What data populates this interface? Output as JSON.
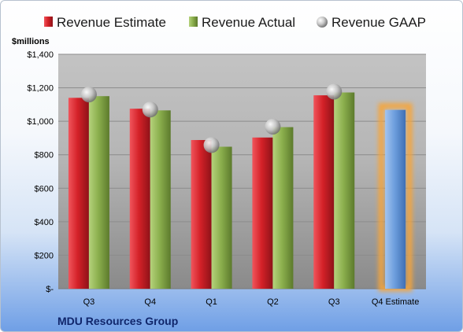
{
  "chart_data": {
    "type": "bar",
    "categories": [
      "Q3",
      "Q4",
      "Q1",
      "Q2",
      "Q3",
      "Q4 Estimate"
    ],
    "series": [
      {
        "name": "Revenue Estimate",
        "values": [
          1140,
          1075,
          888,
          903,
          1155,
          null
        ],
        "color": "#d42128"
      },
      {
        "name": "Revenue Actual",
        "values": [
          1150,
          1065,
          848,
          965,
          1172,
          null
        ],
        "color": "#8cb04e"
      },
      {
        "name": "Revenue GAAP",
        "values": [
          1160,
          1070,
          858,
          968,
          1177,
          null
        ],
        "color": "#b3b3b3"
      }
    ],
    "highlight": {
      "category": "Q4 Estimate",
      "value": 1068,
      "color": "#6e9fde",
      "glow": "#f6a53b"
    },
    "ylabel": "$millions",
    "ylim": [
      0,
      1400
    ],
    "ytick_values": [
      0,
      200,
      400,
      600,
      800,
      1000,
      1200,
      1400
    ],
    "ytick_labels": [
      "$-",
      "$200",
      "$400",
      "$600",
      "$800",
      "$1,000",
      "$1,200",
      "$1,400"
    ],
    "grid": true,
    "legend_position": "top",
    "footer": "MDU Resources Group"
  }
}
